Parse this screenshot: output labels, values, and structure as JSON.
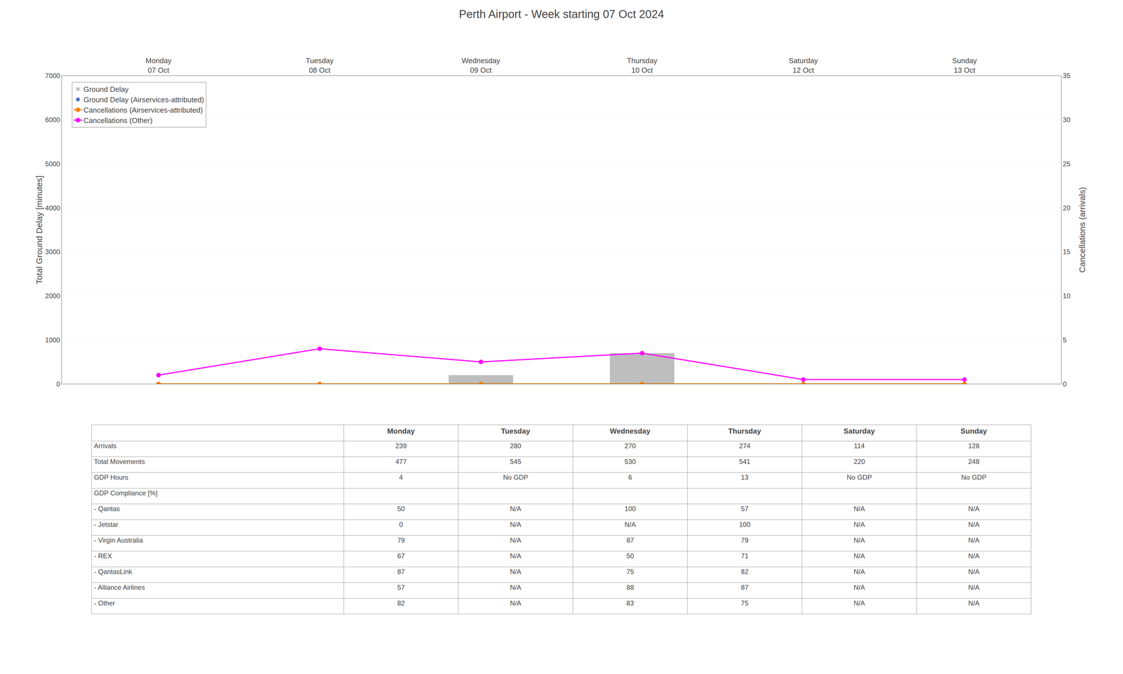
{
  "chart_data": [
    {
      "type": "bar",
      "title": "Perth Airport - Week starting 07 Oct 2024",
      "categories": [
        "Monday\n07 Oct",
        "Tuesday\n08 Oct",
        "Wednesday\n09 Oct",
        "Thursday\n10 Oct",
        "Saturday\n12 Oct",
        "Sunday\n13 Oct"
      ],
      "series": [
        {
          "name": "Ground Delay",
          "type": "bar",
          "color": "#BEBEBE",
          "values": [
            0,
            0,
            200,
            700,
            0,
            0
          ]
        },
        {
          "name": "Ground Delay (Airservices-attributed)",
          "type": "bar",
          "color": "#4472C4",
          "values": [
            0,
            0,
            0,
            0,
            0,
            0
          ]
        },
        {
          "name": "Cancellations (Airservices-attributed)",
          "type": "line",
          "axis": "y2",
          "marker": "circle",
          "color": "#FF8000",
          "values": [
            0,
            0,
            0,
            0,
            0,
            0
          ]
        },
        {
          "name": "Cancellations (Other)",
          "type": "line",
          "axis": "y2",
          "marker": "circle",
          "color": "#FF00FF",
          "values": [
            1,
            4,
            2.5,
            3.5,
            0.5,
            0.5
          ]
        }
      ],
      "ylabel": "Total Ground Delay [minutes]",
      "y2label": "Cancellations (arrivals)",
      "ylim": [
        0,
        7000
      ],
      "yticks": [
        0,
        1000,
        2000,
        3000,
        4000,
        5000,
        6000,
        7000
      ],
      "y2lim": [
        0,
        35
      ],
      "y2ticks": [
        0,
        5,
        10,
        15,
        20,
        25,
        30,
        35
      ],
      "grid": true,
      "legend": "upper left"
    },
    {
      "type": "table",
      "columns": [
        null,
        "Monday",
        "Tuesday",
        "Wednesday",
        "Thursday",
        "Saturday",
        "Sunday"
      ],
      "rows": [
        [
          "Arrivals",
          "239",
          "280",
          "270",
          "274",
          "114",
          "128"
        ],
        [
          "Total Movements",
          "477",
          "545",
          "530",
          "541",
          "220",
          "248"
        ],
        [
          "GDP Hours",
          "4",
          "No GDP",
          "6",
          "13",
          "No GDP",
          "No GDP"
        ],
        [
          "GDP Compliance [%]",
          null,
          null,
          null,
          null,
          null,
          null
        ],
        [
          "- Qantas",
          "50",
          "N/A",
          "100",
          "57",
          "N/A",
          "N/A"
        ],
        [
          "- Jetstar",
          "0",
          "N/A",
          "N/A",
          "100",
          "N/A",
          "N/A"
        ],
        [
          "- Virgin Australia",
          "79",
          "N/A",
          "87",
          "79",
          "N/A",
          "N/A"
        ],
        [
          "- REX",
          "67",
          "N/A",
          "50",
          "71",
          "N/A",
          "N/A"
        ],
        [
          "- QantasLink",
          "87",
          "N/A",
          "75",
          "82",
          "N/A",
          "N/A"
        ],
        [
          "- Alliance Airlines",
          "57",
          "N/A",
          "88",
          "87",
          "N/A",
          "N/A"
        ],
        [
          "- Other",
          "82",
          "N/A",
          "83",
          "75",
          "N/A",
          "N/A"
        ]
      ]
    }
  ]
}
